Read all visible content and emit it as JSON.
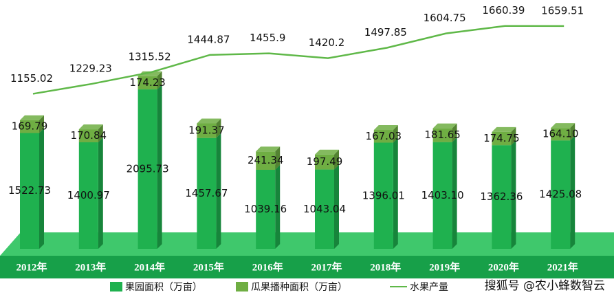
{
  "chart_data": {
    "type": "bar-line",
    "categories": [
      "2012年",
      "2013年",
      "2014年",
      "2015年",
      "2016年",
      "2017年",
      "2018年",
      "2019年",
      "2020年",
      "2021年"
    ],
    "ylim": [
      0,
      3000
    ],
    "y2lim": [
      0,
      1700
    ],
    "series": [
      {
        "name": "果园面积（万亩）",
        "type": "bar",
        "color": "#1fb14f",
        "values": [
          1522.73,
          1400.97,
          2095.73,
          1457.67,
          1039.16,
          1043.04,
          1396.01,
          1403.1,
          1362.36,
          1425.08
        ],
        "value_labels": [
          "1522.73",
          "1400.97",
          "2095.73",
          "1457.67",
          "1039.16",
          "1043.04",
          "1396.01",
          "1403.10",
          "1362.36",
          "1425.08"
        ]
      },
      {
        "name": "瓜果播种面积（万亩）",
        "type": "bar",
        "color": "#6fae43",
        "values": [
          169.79,
          170.84,
          174.23,
          191.37,
          241.34,
          197.49,
          167.03,
          181.65,
          174.75,
          164.1
        ],
        "value_labels": [
          "169.79",
          "170.84",
          "174.23",
          "191.37",
          "241.34",
          "197.49",
          "167.03",
          "181.65",
          "174.75",
          "164.10"
        ]
      },
      {
        "name": "水果产量",
        "type": "line",
        "axis": "y2",
        "color": "#5fb848",
        "values": [
          1155.02,
          1229.23,
          1315.52,
          1444.87,
          1455.9,
          1420.2,
          1497.85,
          1604.75,
          1660.39,
          1659.51
        ],
        "value_labels": [
          "1155.02",
          "1229.23",
          "1315.52",
          "1444.87",
          "1455.9",
          "1420.2",
          "1497.85",
          "1604.75",
          "1660.39",
          "1659.51"
        ]
      }
    ],
    "watermark": "搜狐号 @农小蜂数智云"
  }
}
